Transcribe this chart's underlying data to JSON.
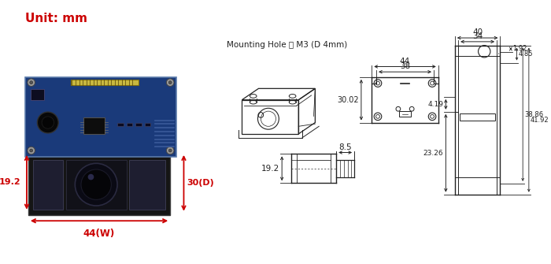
{
  "unit_text": "Unit: mm",
  "mounting_hole_text": "Mounting Hole ： M3 (D 4mm)",
  "unit_color": "#cc0000",
  "bg_color": "#ffffff",
  "line_color": "#222222",
  "dim_color": "#222222",
  "red": "#cc0000"
}
